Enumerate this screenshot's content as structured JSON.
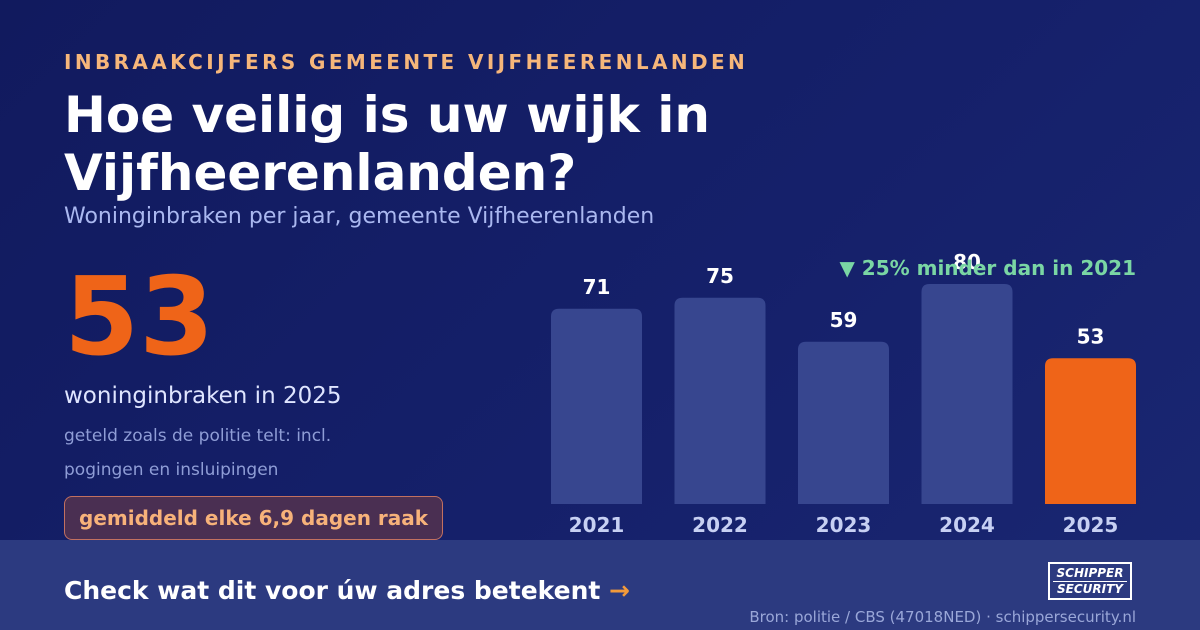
{
  "header": {
    "kicker": "INBRAAKCIJFERS GEMEENTE VIJFHEERENLANDEN",
    "title": "Hoe veilig is uw wijk in Vijfheerenlanden?",
    "subtitle": "Woninginbraken per jaar, gemeente Vijfheerenlanden"
  },
  "highlight": {
    "value": "53",
    "caption": "woninginbraken in 2025",
    "note": "geteld zoals de politie telt: incl. pogingen en insluipingen",
    "pill": "gemiddeld elke 6,9 dagen raak"
  },
  "delta_text": "▼ 25% minder dan in 2021",
  "chart_data": {
    "type": "bar",
    "categories": [
      "2021",
      "2022",
      "2023",
      "2024",
      "2025"
    ],
    "values": [
      71,
      75,
      59,
      80,
      53
    ],
    "highlight_index": 4,
    "ylim": [
      0,
      80
    ],
    "title": "",
    "xlabel": "",
    "ylabel": "",
    "grid": false,
    "bar_color": "#37468f",
    "highlight_color": "#ef6418"
  },
  "footer": {
    "cta": "Check wat dit voor úw adres betekent",
    "cta_arrow": "→",
    "logo_line1": "SCHIPPER",
    "logo_line2": "SECURITY",
    "source": "Bron: politie / CBS (47018NED) · schippersecurity.nl"
  },
  "colors": {
    "background": "#111a5e",
    "accent": "#ef6418",
    "kicker": "#f6b67a",
    "positive": "#7ad6a4",
    "footer": "#2c3a80"
  }
}
